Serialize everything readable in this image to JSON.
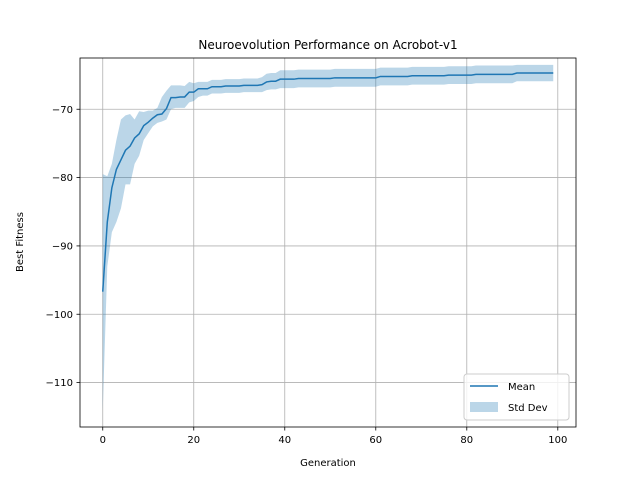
{
  "chart_data": {
    "type": "line",
    "title": "Neuroevolution Performance on Acrobot-v1",
    "xlabel": "Generation",
    "ylabel": "Best Fitness",
    "xlim": [
      -5,
      104
    ],
    "ylim": [
      -116.5,
      -62.5
    ],
    "xticks": [
      0,
      20,
      40,
      60,
      80,
      100
    ],
    "yticks": [
      -70,
      -80,
      -90,
      -100,
      -110
    ],
    "grid": true,
    "legend_position": "lower-right",
    "colors": {
      "line": "#1f77b4",
      "band": "#1f77b4",
      "band_opacity": 0.3,
      "grid": "#b0b0b0"
    },
    "series": [
      {
        "name": "Mean",
        "kind": "line",
        "x": [
          0,
          1,
          2,
          3,
          4,
          5,
          6,
          7,
          8,
          9,
          10,
          11,
          12,
          13,
          14,
          15,
          16,
          17,
          18,
          19,
          20,
          21,
          22,
          23,
          24,
          25,
          26,
          27,
          28,
          29,
          30,
          31,
          32,
          33,
          34,
          35,
          36,
          37,
          38,
          39,
          40,
          41,
          42,
          43,
          44,
          45,
          46,
          47,
          48,
          49,
          50,
          51,
          52,
          53,
          54,
          55,
          56,
          57,
          58,
          59,
          60,
          61,
          62,
          63,
          64,
          65,
          66,
          67,
          68,
          69,
          70,
          71,
          72,
          73,
          74,
          75,
          76,
          77,
          78,
          79,
          80,
          81,
          82,
          83,
          84,
          85,
          86,
          87,
          88,
          89,
          90,
          91,
          92,
          93,
          94,
          95,
          96,
          97,
          98,
          99
        ],
        "y": [
          -96.7,
          -86.5,
          -81.5,
          -78.8,
          -77.4,
          -76,
          -75.4,
          -74.2,
          -73.6,
          -72.4,
          -71.9,
          -71.3,
          -70.8,
          -70.7,
          -69.9,
          -68.3,
          -68.3,
          -68.2,
          -68.2,
          -67.5,
          -67.5,
          -67,
          -67,
          -67,
          -66.7,
          -66.7,
          -66.7,
          -66.6,
          -66.6,
          -66.6,
          -66.6,
          -66.5,
          -66.5,
          -66.5,
          -66.5,
          -66.4,
          -66,
          -65.9,
          -65.9,
          -65.6,
          -65.6,
          -65.6,
          -65.6,
          -65.5,
          -65.5,
          -65.5,
          -65.5,
          -65.5,
          -65.5,
          -65.5,
          -65.5,
          -65.4,
          -65.4,
          -65.4,
          -65.4,
          -65.4,
          -65.4,
          -65.4,
          -65.4,
          -65.4,
          -65.4,
          -65.2,
          -65.2,
          -65.2,
          -65.2,
          -65.2,
          -65.2,
          -65.2,
          -65.1,
          -65.1,
          -65.1,
          -65.1,
          -65.1,
          -65.1,
          -65.1,
          -65.1,
          -65,
          -65,
          -65,
          -65,
          -65,
          -65,
          -64.9,
          -64.9,
          -64.9,
          -64.9,
          -64.9,
          -64.9,
          -64.9,
          -64.9,
          -64.9,
          -64.7,
          -64.7,
          -64.7,
          -64.7,
          -64.7,
          -64.7,
          -64.7,
          -64.7,
          -64.7
        ]
      },
      {
        "name": "Std Dev",
        "kind": "band",
        "x": [
          0,
          1,
          2,
          3,
          4,
          5,
          6,
          7,
          8,
          9,
          10,
          11,
          12,
          13,
          14,
          15,
          16,
          17,
          18,
          19,
          20,
          21,
          22,
          23,
          24,
          25,
          26,
          27,
          28,
          29,
          30,
          31,
          32,
          33,
          34,
          35,
          36,
          37,
          38,
          39,
          40,
          41,
          42,
          43,
          44,
          45,
          46,
          47,
          48,
          49,
          50,
          51,
          52,
          53,
          54,
          55,
          56,
          57,
          58,
          59,
          60,
          61,
          62,
          63,
          64,
          65,
          66,
          67,
          68,
          69,
          70,
          71,
          72,
          73,
          74,
          75,
          76,
          77,
          78,
          79,
          80,
          81,
          82,
          83,
          84,
          85,
          86,
          87,
          88,
          89,
          90,
          91,
          92,
          93,
          94,
          95,
          96,
          97,
          98,
          99
        ],
        "upper": [
          -79.5,
          -79.8,
          -78,
          -74.5,
          -71.5,
          -70.9,
          -70.7,
          -71.5,
          -70.3,
          -70.4,
          -70.2,
          -70.2,
          -69.8,
          -68.2,
          -67.3,
          -66.5,
          -66.5,
          -66.5,
          -66.6,
          -66,
          -66.2,
          -66,
          -66,
          -66,
          -65.7,
          -65.7,
          -65.7,
          -65.6,
          -65.6,
          -65.6,
          -65.6,
          -65.5,
          -65.5,
          -65.5,
          -65.5,
          -65.3,
          -64.8,
          -64.7,
          -64.7,
          -64.3,
          -64.3,
          -64.3,
          -64.3,
          -64.2,
          -64.2,
          -64.2,
          -64.2,
          -64.2,
          -64.2,
          -64.2,
          -64.2,
          -64.1,
          -64.1,
          -64.1,
          -64.1,
          -64.1,
          -64.1,
          -64.1,
          -64.1,
          -64.1,
          -64.1,
          -63.9,
          -63.9,
          -63.9,
          -63.9,
          -63.9,
          -63.9,
          -63.9,
          -63.8,
          -63.8,
          -63.8,
          -63.8,
          -63.8,
          -63.8,
          -63.8,
          -63.8,
          -63.7,
          -63.7,
          -63.7,
          -63.7,
          -63.7,
          -63.7,
          -63.6,
          -63.6,
          -63.6,
          -63.6,
          -63.6,
          -63.6,
          -63.6,
          -63.6,
          -63.6,
          -63.5,
          -63.5,
          -63.5,
          -63.5,
          -63.5,
          -63.5,
          -63.5,
          -63.5,
          -63.5
        ],
        "lower": [
          -114,
          -93,
          -88,
          -86.5,
          -84.5,
          -81,
          -81,
          -78,
          -76.8,
          -74.5,
          -73.5,
          -72.5,
          -72,
          -71.8,
          -71.5,
          -70,
          -69.8,
          -69.8,
          -69.8,
          -69,
          -68.8,
          -68.2,
          -68,
          -68,
          -67.7,
          -67.7,
          -67.7,
          -67.6,
          -67.6,
          -67.6,
          -67.6,
          -67.5,
          -67.5,
          -67.5,
          -67.5,
          -67.5,
          -67.2,
          -67.1,
          -67.1,
          -66.9,
          -66.9,
          -66.9,
          -66.9,
          -66.8,
          -66.8,
          -66.8,
          -66.8,
          -66.8,
          -66.8,
          -66.8,
          -66.8,
          -66.7,
          -66.7,
          -66.7,
          -66.7,
          -66.7,
          -66.7,
          -66.7,
          -66.7,
          -66.7,
          -66.7,
          -66.5,
          -66.5,
          -66.5,
          -66.5,
          -66.5,
          -66.5,
          -66.5,
          -66.4,
          -66.4,
          -66.4,
          -66.4,
          -66.4,
          -66.4,
          -66.4,
          -66.4,
          -66.3,
          -66.3,
          -66.3,
          -66.3,
          -66.3,
          -66.3,
          -66.2,
          -66.2,
          -66.2,
          -66.2,
          -66.2,
          -66.2,
          -66.2,
          -66.2,
          -66.2,
          -65.9,
          -65.9,
          -65.9,
          -65.9,
          -65.9,
          -65.9,
          -65.9,
          -65.9,
          -65.9
        ]
      }
    ],
    "legend": [
      {
        "label": "Mean",
        "swatch": "line"
      },
      {
        "label": "Std Dev",
        "swatch": "patch"
      }
    ]
  }
}
